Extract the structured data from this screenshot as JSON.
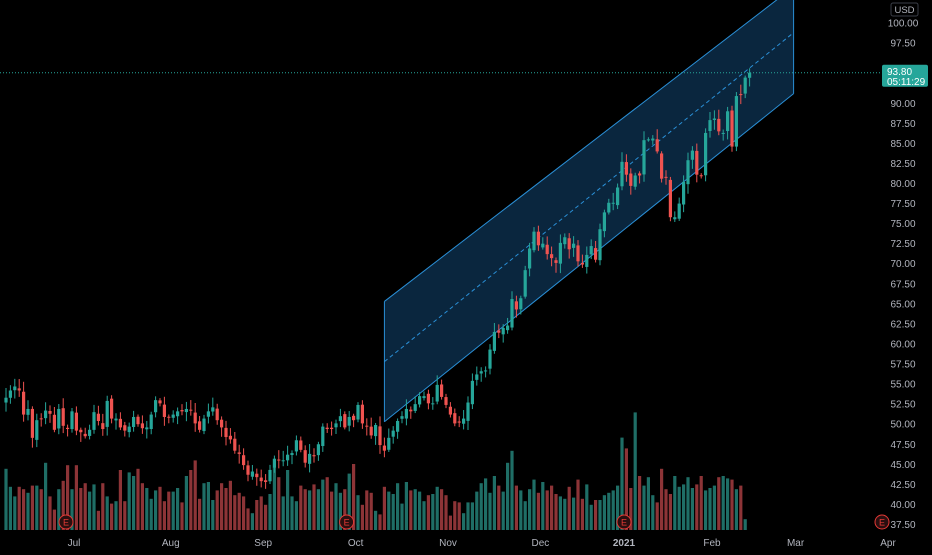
{
  "chart_data": {
    "type": "candlestick",
    "currency": "USD",
    "x_axis_labels": [
      "Jul",
      "Aug",
      "Sep",
      "Oct",
      "Nov",
      "Dec",
      "2021",
      "Feb",
      "Mar",
      "Apr"
    ],
    "y_axis_ticks": [
      "100.00",
      "97.50",
      "95.00",
      "92.50",
      "90.00",
      "87.50",
      "85.00",
      "82.50",
      "80.00",
      "77.50",
      "75.00",
      "72.50",
      "70.00",
      "67.50",
      "65.00",
      "62.50",
      "60.00",
      "57.50",
      "55.00",
      "52.50",
      "50.00",
      "47.50",
      "45.00",
      "42.50",
      "40.00",
      "37.50"
    ],
    "ylim": [
      37.0,
      101.5
    ],
    "last_price": "93.80",
    "countdown": "05:11:29",
    "earnings_marker_label": "E",
    "earnings_months": [
      "Jul",
      "Oct",
      "2021",
      "Apr"
    ],
    "month_positions": {
      "Jul": 0,
      "Aug": 22,
      "Sep": 43,
      "Oct": 64,
      "Nov": 85,
      "Dec": 106,
      "2021": 125,
      "Feb": 145,
      "Mar": 164,
      "Apr": 185
    },
    "channel": {
      "start_index": 86,
      "end_index": 179,
      "upper_start": 65.3,
      "upper_end": 104.5,
      "middle_start": 57.8,
      "middle_end": 98.8,
      "lower_start": 50.3,
      "lower_end": 91.2
    },
    "colors": {
      "up": "#26a69a",
      "down": "#ef5350",
      "volume_up": "#1f6e66",
      "volume_down": "#8d3437",
      "channel_line": "#2a8fd6",
      "channel_fill": "#0c2d49",
      "last_price_badge": "#26a69a",
      "earnings": "#e53935",
      "axis_text": "#b2b5be"
    },
    "series": [
      {
        "name": "price",
        "close": [
          53.3,
          54.2,
          54.7,
          54.2,
          51.2,
          51.9,
          48.3,
          50.5,
          50.7,
          51.7,
          51.3,
          49.3,
          51.9,
          49.8,
          49.4,
          51.6,
          49.2,
          49.0,
          48.5,
          49.3,
          51.5,
          50.4,
          49.4,
          52.9,
          50.7,
          50.7,
          49.6,
          49.2,
          49.7,
          50.9,
          50.0,
          49.5,
          49.6,
          51.2,
          53.0,
          52.6,
          50.9,
          50.9,
          51.2,
          51.6,
          51.6,
          51.9,
          51.7,
          50.1,
          49.3,
          50.7,
          51.6,
          52.1,
          50.5,
          49.6,
          48.4,
          48.1,
          46.7,
          46.3,
          44.9,
          43.7,
          44.1,
          43.4,
          42.9,
          42.8,
          44.3,
          45.7,
          45.5,
          45.5,
          46.2,
          46.4,
          48.0,
          46.8,
          45.2,
          46.3,
          46.0,
          47.5,
          49.7,
          49.4,
          49.4,
          50.1,
          51.0,
          49.6,
          50.9,
          50.5,
          52.4,
          50.1,
          49.8,
          48.6,
          49.9,
          47.4,
          46.7,
          48.3,
          49.2,
          50.4,
          51.0,
          51.9,
          51.6,
          52.5,
          53.5,
          53.5,
          52.6,
          52.6,
          54.9,
          53.4,
          52.4,
          51.2,
          50.1,
          50.2,
          50.7,
          52.7,
          55.4,
          56.2,
          56.6,
          56.7,
          59.3,
          61.5,
          61.4,
          62.0,
          62.3,
          65.6,
          64.3,
          65.7,
          69.2,
          71.9,
          74.0,
          72.3,
          72.5,
          71.2,
          70.7,
          70.1,
          72.6,
          73.3,
          71.8,
          72.5,
          70.3,
          69.9,
          71.1,
          72.2,
          70.5,
          74.3,
          76.4,
          77.6,
          77.6,
          79.5,
          82.7,
          81.1,
          79.7,
          81.0,
          81.0,
          85.4,
          85.5,
          85.6,
          84.0,
          80.6,
          80.7,
          75.8,
          75.8,
          77.5,
          80.2,
          82.9,
          84.1,
          81.1,
          81.0,
          86.3,
          87.9,
          88.1,
          86.5,
          86.3,
          89.0,
          84.6,
          90.9,
          91.1,
          93.2,
          93.8
        ]
      }
    ],
    "volume_relative": [
      0.51,
      0.36,
      0.28,
      0.36,
      0.34,
      0.31,
      0.37,
      0.37,
      0.34,
      0.56,
      0.28,
      0.17,
      0.34,
      0.41,
      0.54,
      0.34,
      0.54,
      0.35,
      0.39,
      0.32,
      0.38,
      0.16,
      0.39,
      0.28,
      0.22,
      0.24,
      0.5,
      0.24,
      0.48,
      0.45,
      0.51,
      0.39,
      0.35,
      0.26,
      0.33,
      0.36,
      0.24,
      0.32,
      0.32,
      0.35,
      0.23,
      0.45,
      0.5,
      0.58,
      0.26,
      0.39,
      0.4,
      0.25,
      0.33,
      0.39,
      0.35,
      0.41,
      0.29,
      0.31,
      0.28,
      0.18,
      0.14,
      0.25,
      0.28,
      0.21,
      0.3,
      0.52,
      0.44,
      0.28,
      0.5,
      0.28,
      0.24,
      0.37,
      0.34,
      0.33,
      0.38,
      0.34,
      0.42,
      0.44,
      0.32,
      0.39,
      0.31,
      0.34,
      0.47,
      0.55,
      0.29,
      0.21,
      0.33,
      0.31,
      0.16,
      0.13,
      0.36,
      0.32,
      0.3,
      0.39,
      0.22,
      0.4,
      0.33,
      0.34,
      0.32,
      0.24,
      0.29,
      0.3,
      0.36,
      0.34,
      0.29,
      0.12,
      0.24,
      0.23,
      0.14,
      0.23,
      0.23,
      0.32,
      0.39,
      0.43,
      0.31,
      0.45,
      0.37,
      0.32,
      0.56,
      0.66,
      0.37,
      0.33,
      0.24,
      0.34,
      0.42,
      0.31,
      0.4,
      0.33,
      0.37,
      0.3,
      0.28,
      0.26,
      0.36,
      0.27,
      0.42,
      0.26,
      0.38,
      0.21,
      0.25,
      0.25,
      0.29,
      0.31,
      0.33,
      0.37,
      0.77,
      0.68,
      0.35,
      0.98,
      0.45,
      0.37,
      0.44,
      0.29,
      0.23,
      0.51,
      0.34,
      0.3,
      0.45,
      0.36,
      0.38,
      0.44,
      0.35,
      0.38,
      0.45,
      0.33,
      0.35,
      0.37,
      0.44,
      0.45,
      0.43,
      0.42,
      0.34,
      0.37,
      0.09
    ]
  }
}
